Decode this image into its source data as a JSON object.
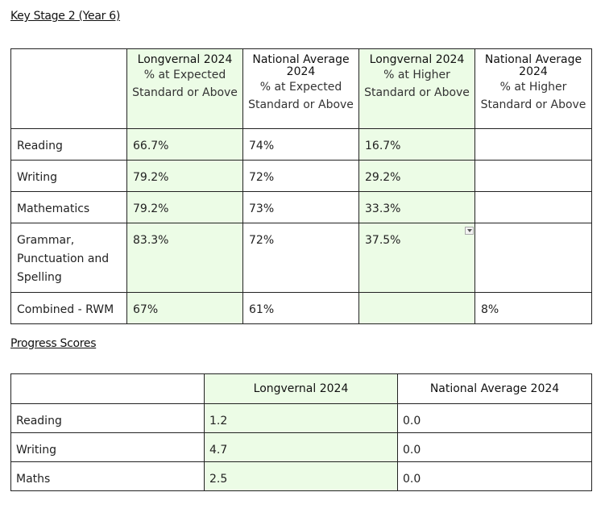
{
  "ks2": {
    "heading": "Key Stage 2 (Year 6)",
    "columns": [
      {
        "title": "Longvernal 2024",
        "sub": "% at Expected Standard or Above"
      },
      {
        "title": "National Average 2024",
        "sub": "% at Expected Standard or Above"
      },
      {
        "title": "Longvernal 2024",
        "sub": "% at Higher Standard or Above"
      },
      {
        "title": "National Average 2024",
        "sub": "% at Higher Standard or Above"
      }
    ],
    "rows": [
      {
        "subject": "Reading",
        "values": [
          "66.7%",
          "74%",
          "16.7%",
          ""
        ]
      },
      {
        "subject": "Writing",
        "values": [
          "79.2%",
          "72%",
          "29.2%",
          ""
        ]
      },
      {
        "subject": "Mathematics",
        "values": [
          "79.2%",
          "73%",
          "33.3%",
          ""
        ]
      },
      {
        "subject": "Grammar, Punctuation and Spelling",
        "values": [
          "83.3%",
          "72%",
          "37.5%",
          ""
        ]
      },
      {
        "subject": "Combined - RWM",
        "values": [
          "67%",
          "61%",
          "",
          "8%"
        ]
      }
    ]
  },
  "progress": {
    "heading": "Progress Scores",
    "columns": [
      "Longvernal 2024",
      "National Average 2024"
    ],
    "rows": [
      {
        "subject": "Reading",
        "values": [
          "1.2",
          "0.0"
        ]
      },
      {
        "subject": "Writing",
        "values": [
          "4.7",
          "0.0"
        ]
      },
      {
        "subject": "Maths",
        "values": [
          "2.5",
          "0.0"
        ]
      }
    ]
  }
}
